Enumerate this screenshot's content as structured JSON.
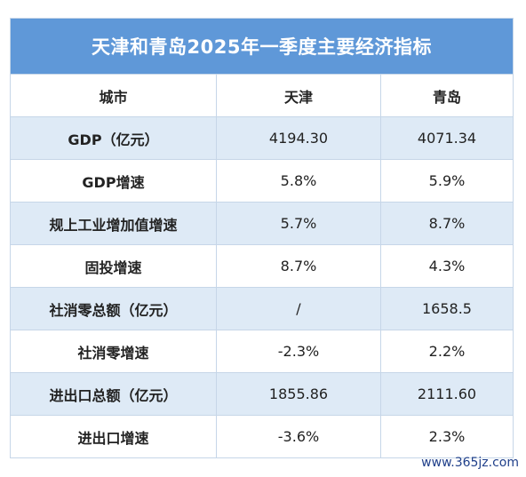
{
  "title": "天津和青岛2025年一季度主要经济指标",
  "columns": [
    "城市",
    "天津",
    "青岛"
  ],
  "rows": [
    {
      "label": "GDP（亿元）",
      "tianjin": "4194.30",
      "qingdao": "4071.34"
    },
    {
      "label": "GDP增速",
      "tianjin": "5.8%",
      "qingdao": "5.9%"
    },
    {
      "label": "规上工业增加值增速",
      "tianjin": "5.7%",
      "qingdao": "8.7%"
    },
    {
      "label": "固投增速",
      "tianjin": "8.7%",
      "qingdao": "4.3%"
    },
    {
      "label": "社消零总额（亿元）",
      "tianjin": "/",
      "qingdao": "1658.5"
    },
    {
      "label": "社消零增速",
      "tianjin": "-2.3%",
      "qingdao": "2.2%"
    },
    {
      "label": "进出口总额（亿元）",
      "tianjin": "1855.86",
      "qingdao": "2111.60"
    },
    {
      "label": "进出口增速",
      "tianjin": "-3.6%",
      "qingdao": "2.3%"
    }
  ],
  "site_mark": "www.365jz.com",
  "colors": {
    "title_bg": "#5f98d8",
    "shaded_row": "#deeaf6",
    "border": "#c6d6e8"
  }
}
